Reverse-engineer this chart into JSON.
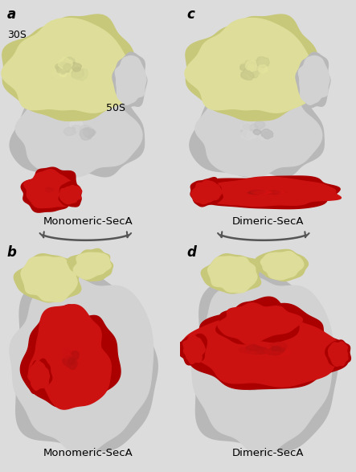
{
  "bg_color": "#dcdcdc",
  "yellow": "#dede9a",
  "gray_light": "#d2d2d2",
  "gray_mid": "#b8b8b8",
  "gray_dark": "#909090",
  "red": "#cc1111",
  "red_dark": "#aa0000",
  "white_hl": "#f5f5f0",
  "panel_labels": [
    "a",
    "b",
    "c",
    "d"
  ],
  "captions": [
    "Monomeric-SecA",
    "Monomeric-SecA",
    "Dimeric-SecA",
    "Dimeric-SecA"
  ],
  "label_30S": "30S",
  "label_50S": "50S",
  "label_fontsize": 12,
  "caption_fontsize": 9.5,
  "subunit_fontsize": 9
}
